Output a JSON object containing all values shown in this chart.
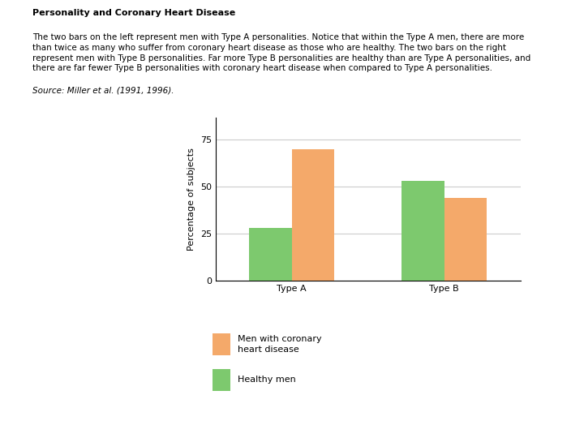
{
  "title": "Personality and Coronary Heart Disease",
  "description_lines": [
    "The two bars on the left represent men with Type A personalities. Notice that within the Type A men, there are more",
    "than twice as many who suffer from coronary heart disease as those who are healthy. The two bars on the right",
    "represent men with Type B personalities. Far more Type B personalities are healthy than are Type A personalities, and",
    "there are far fewer Type B personalities with coronary heart disease when compared to Type A personalities.",
    "Source: Miller et al. (1991, 1996)."
  ],
  "title_line": "Personality and Coronary Heart Disease",
  "source_line": "Source: Miller et al. (1991, 1996).",
  "categories": [
    "Type A",
    "Type B"
  ],
  "healthy_values": [
    28,
    53
  ],
  "disease_values": [
    70,
    44
  ],
  "healthy_color": "#7dc96e",
  "disease_color": "#f4a96a",
  "ylabel": "Percentage of subjects",
  "yticks": [
    0,
    25,
    50,
    75
  ],
  "background_color": "#bdd8ea",
  "chart_bg": "#ffffff",
  "legend_label_disease": "Men with coronary\nheart disease",
  "legend_label_healthy": "Healthy men",
  "bar_width": 0.28,
  "font_size_title": 8,
  "font_size_desc": 7.5,
  "font_size_axis": 8,
  "font_size_tick": 8
}
